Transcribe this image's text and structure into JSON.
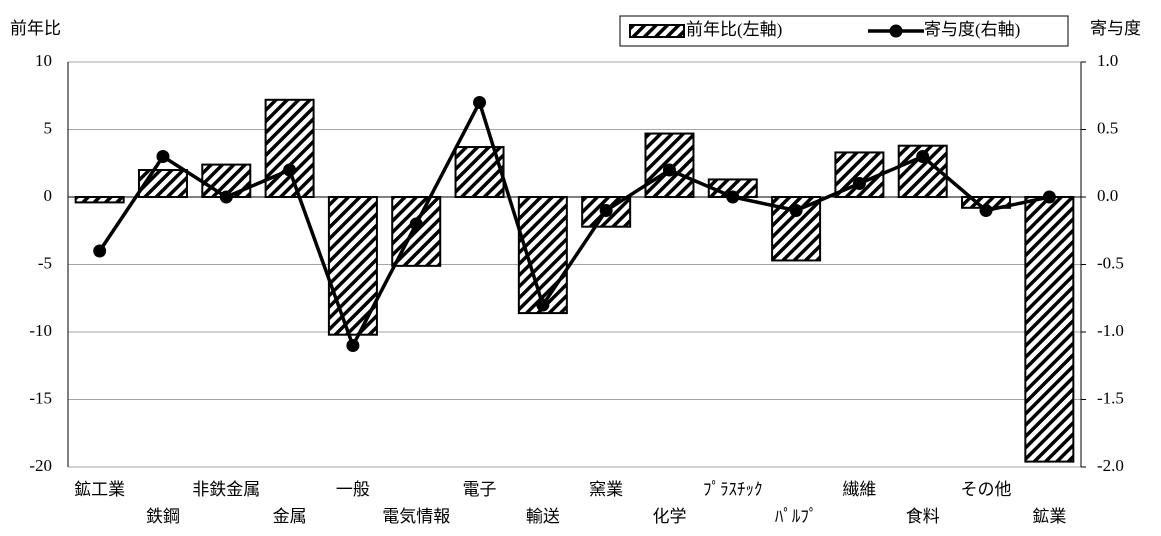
{
  "chart_data": {
    "type": "bar",
    "y_label": "前年比",
    "y2_label": "寄与度",
    "categories": [
      "鉱工業",
      "鉄鋼",
      "非鉄金属",
      "金属",
      "一般",
      "電気情報",
      "電子",
      "輸送",
      "窯業",
      "化学",
      "ﾌﾟﾗｽﾁｯｸ",
      "ﾊﾟﾙﾌﾟ",
      "繊維",
      "食料",
      "その他",
      "鉱業"
    ],
    "series": [
      {
        "name": "前年比(左軸)",
        "type": "bar",
        "color": "#000000",
        "pattern": "hatch",
        "values": [
          -0.4,
          2.0,
          2.4,
          7.2,
          -10.2,
          -5.1,
          3.7,
          -8.6,
          -2.2,
          4.7,
          1.3,
          -4.7,
          3.3,
          3.8,
          -0.8,
          -19.6
        ]
      },
      {
        "name": "寄与度(右軸)",
        "type": "line",
        "axis": "y2",
        "color": "#000000",
        "values": [
          -0.4,
          0.3,
          0.0,
          0.2,
          -1.1,
          -0.2,
          0.7,
          -0.8,
          -0.1,
          0.2,
          0.0,
          -0.1,
          0.1,
          0.3,
          -0.1,
          0.0
        ]
      }
    ],
    "ylim": [
      -20,
      10
    ],
    "yticks": [
      10,
      5,
      0,
      -5,
      -10,
      -15,
      -20
    ],
    "y2lim": [
      -2.0,
      1.0
    ],
    "y2ticks": [
      {
        "value": 1.0,
        "label": "1.0"
      },
      {
        "value": 0.5,
        "label": "0.5"
      },
      {
        "value": 0.0,
        "label": "0.0"
      },
      {
        "value": -0.5,
        "label": "-0.5"
      },
      {
        "value": -1.0,
        "label": "-1.0"
      },
      {
        "value": -1.5,
        "label": "-1.5"
      },
      {
        "value": -2.0,
        "label": "-2.0"
      }
    ],
    "grid": true,
    "legend": "top-right"
  }
}
